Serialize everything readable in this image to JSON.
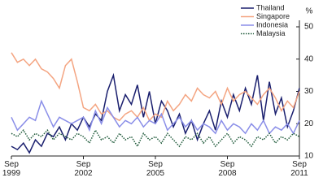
{
  "chart_data": {
    "type": "line",
    "y_label": "%",
    "y_axis_side": "right",
    "legend": "upper right",
    "x": [
      1999.67,
      1999.92,
      2000.17,
      2000.42,
      2000.67,
      2000.92,
      2001.17,
      2001.42,
      2001.67,
      2001.92,
      2002.17,
      2002.42,
      2002.67,
      2002.92,
      2003.17,
      2003.42,
      2003.67,
      2003.92,
      2004.17,
      2004.42,
      2004.67,
      2004.92,
      2005.17,
      2005.42,
      2005.67,
      2005.92,
      2006.17,
      2006.42,
      2006.67,
      2006.92,
      2007.17,
      2007.42,
      2007.67,
      2007.92,
      2008.17,
      2008.42,
      2008.67,
      2008.92,
      2009.17,
      2009.42,
      2009.67,
      2009.92,
      2010.17,
      2010.42,
      2010.67,
      2010.92,
      2011.17,
      2011.42,
      2011.67
    ],
    "xlim": [
      1999.67,
      2011.67
    ],
    "xticks": [
      {
        "value": 1999.67,
        "label": "Sep\n1999"
      },
      {
        "value": 2002.67,
        "label": "Sep\n2002"
      },
      {
        "value": 2005.67,
        "label": "Sep\n2005"
      },
      {
        "value": 2008.67,
        "label": "Sep\n2008"
      },
      {
        "value": 2011.67,
        "label": "Sep\n2011"
      }
    ],
    "ylim": [
      10,
      50
    ],
    "yticks": [
      10,
      20,
      30,
      40,
      50
    ],
    "series": [
      {
        "name": "Thailand",
        "color": "#1a1f6e",
        "style": "solid",
        "values": [
          13,
          12,
          14,
          11,
          15,
          13,
          17,
          16,
          19,
          15,
          20,
          18,
          22,
          19,
          23,
          21,
          30,
          35,
          24,
          29,
          26,
          32,
          22,
          30,
          20,
          27,
          24,
          19,
          23,
          17,
          21,
          15,
          20,
          24,
          18,
          27,
          22,
          29,
          24,
          31,
          26,
          35,
          21,
          33,
          23,
          28,
          19,
          24,
          31
        ]
      },
      {
        "name": "Singapore",
        "color": "#f4a582",
        "style": "solid",
        "values": [
          42,
          39,
          40,
          38,
          40,
          37,
          36,
          34,
          31,
          38,
          40,
          33,
          25,
          24,
          26,
          23,
          24,
          22,
          21,
          23,
          24,
          22,
          25,
          21,
          23,
          22,
          27,
          24,
          26,
          29,
          27,
          31,
          29,
          28,
          30,
          26,
          31,
          27,
          29,
          30,
          28,
          26,
          29,
          31,
          28,
          24,
          27,
          25,
          30
        ]
      },
      {
        "name": "Indonesia",
        "color": "#8a8ee8",
        "style": "solid",
        "values": [
          22,
          18,
          20,
          22,
          21,
          27,
          23,
          19,
          22,
          21,
          20,
          21,
          22,
          18,
          24,
          20,
          25,
          22,
          19,
          21,
          20,
          22,
          19,
          21,
          20,
          23,
          18,
          20,
          22,
          19,
          21,
          18,
          20,
          19,
          17,
          21,
          18,
          20,
          19,
          17,
          20,
          18,
          21,
          17,
          19,
          18,
          20,
          17,
          21
        ]
      },
      {
        "name": "Malaysia",
        "color": "#1f5a3a",
        "style": "dotted",
        "values": [
          17,
          16,
          18,
          15,
          17,
          16,
          18,
          15,
          17,
          16,
          15,
          17,
          16,
          14,
          18,
          15,
          16,
          14,
          17,
          15,
          16,
          13,
          17,
          15,
          16,
          14,
          17,
          15,
          13,
          16,
          15,
          17,
          14,
          16,
          13,
          15,
          17,
          14,
          16,
          15,
          13,
          16,
          15,
          17,
          14,
          16,
          15,
          17,
          16
        ]
      }
    ]
  }
}
